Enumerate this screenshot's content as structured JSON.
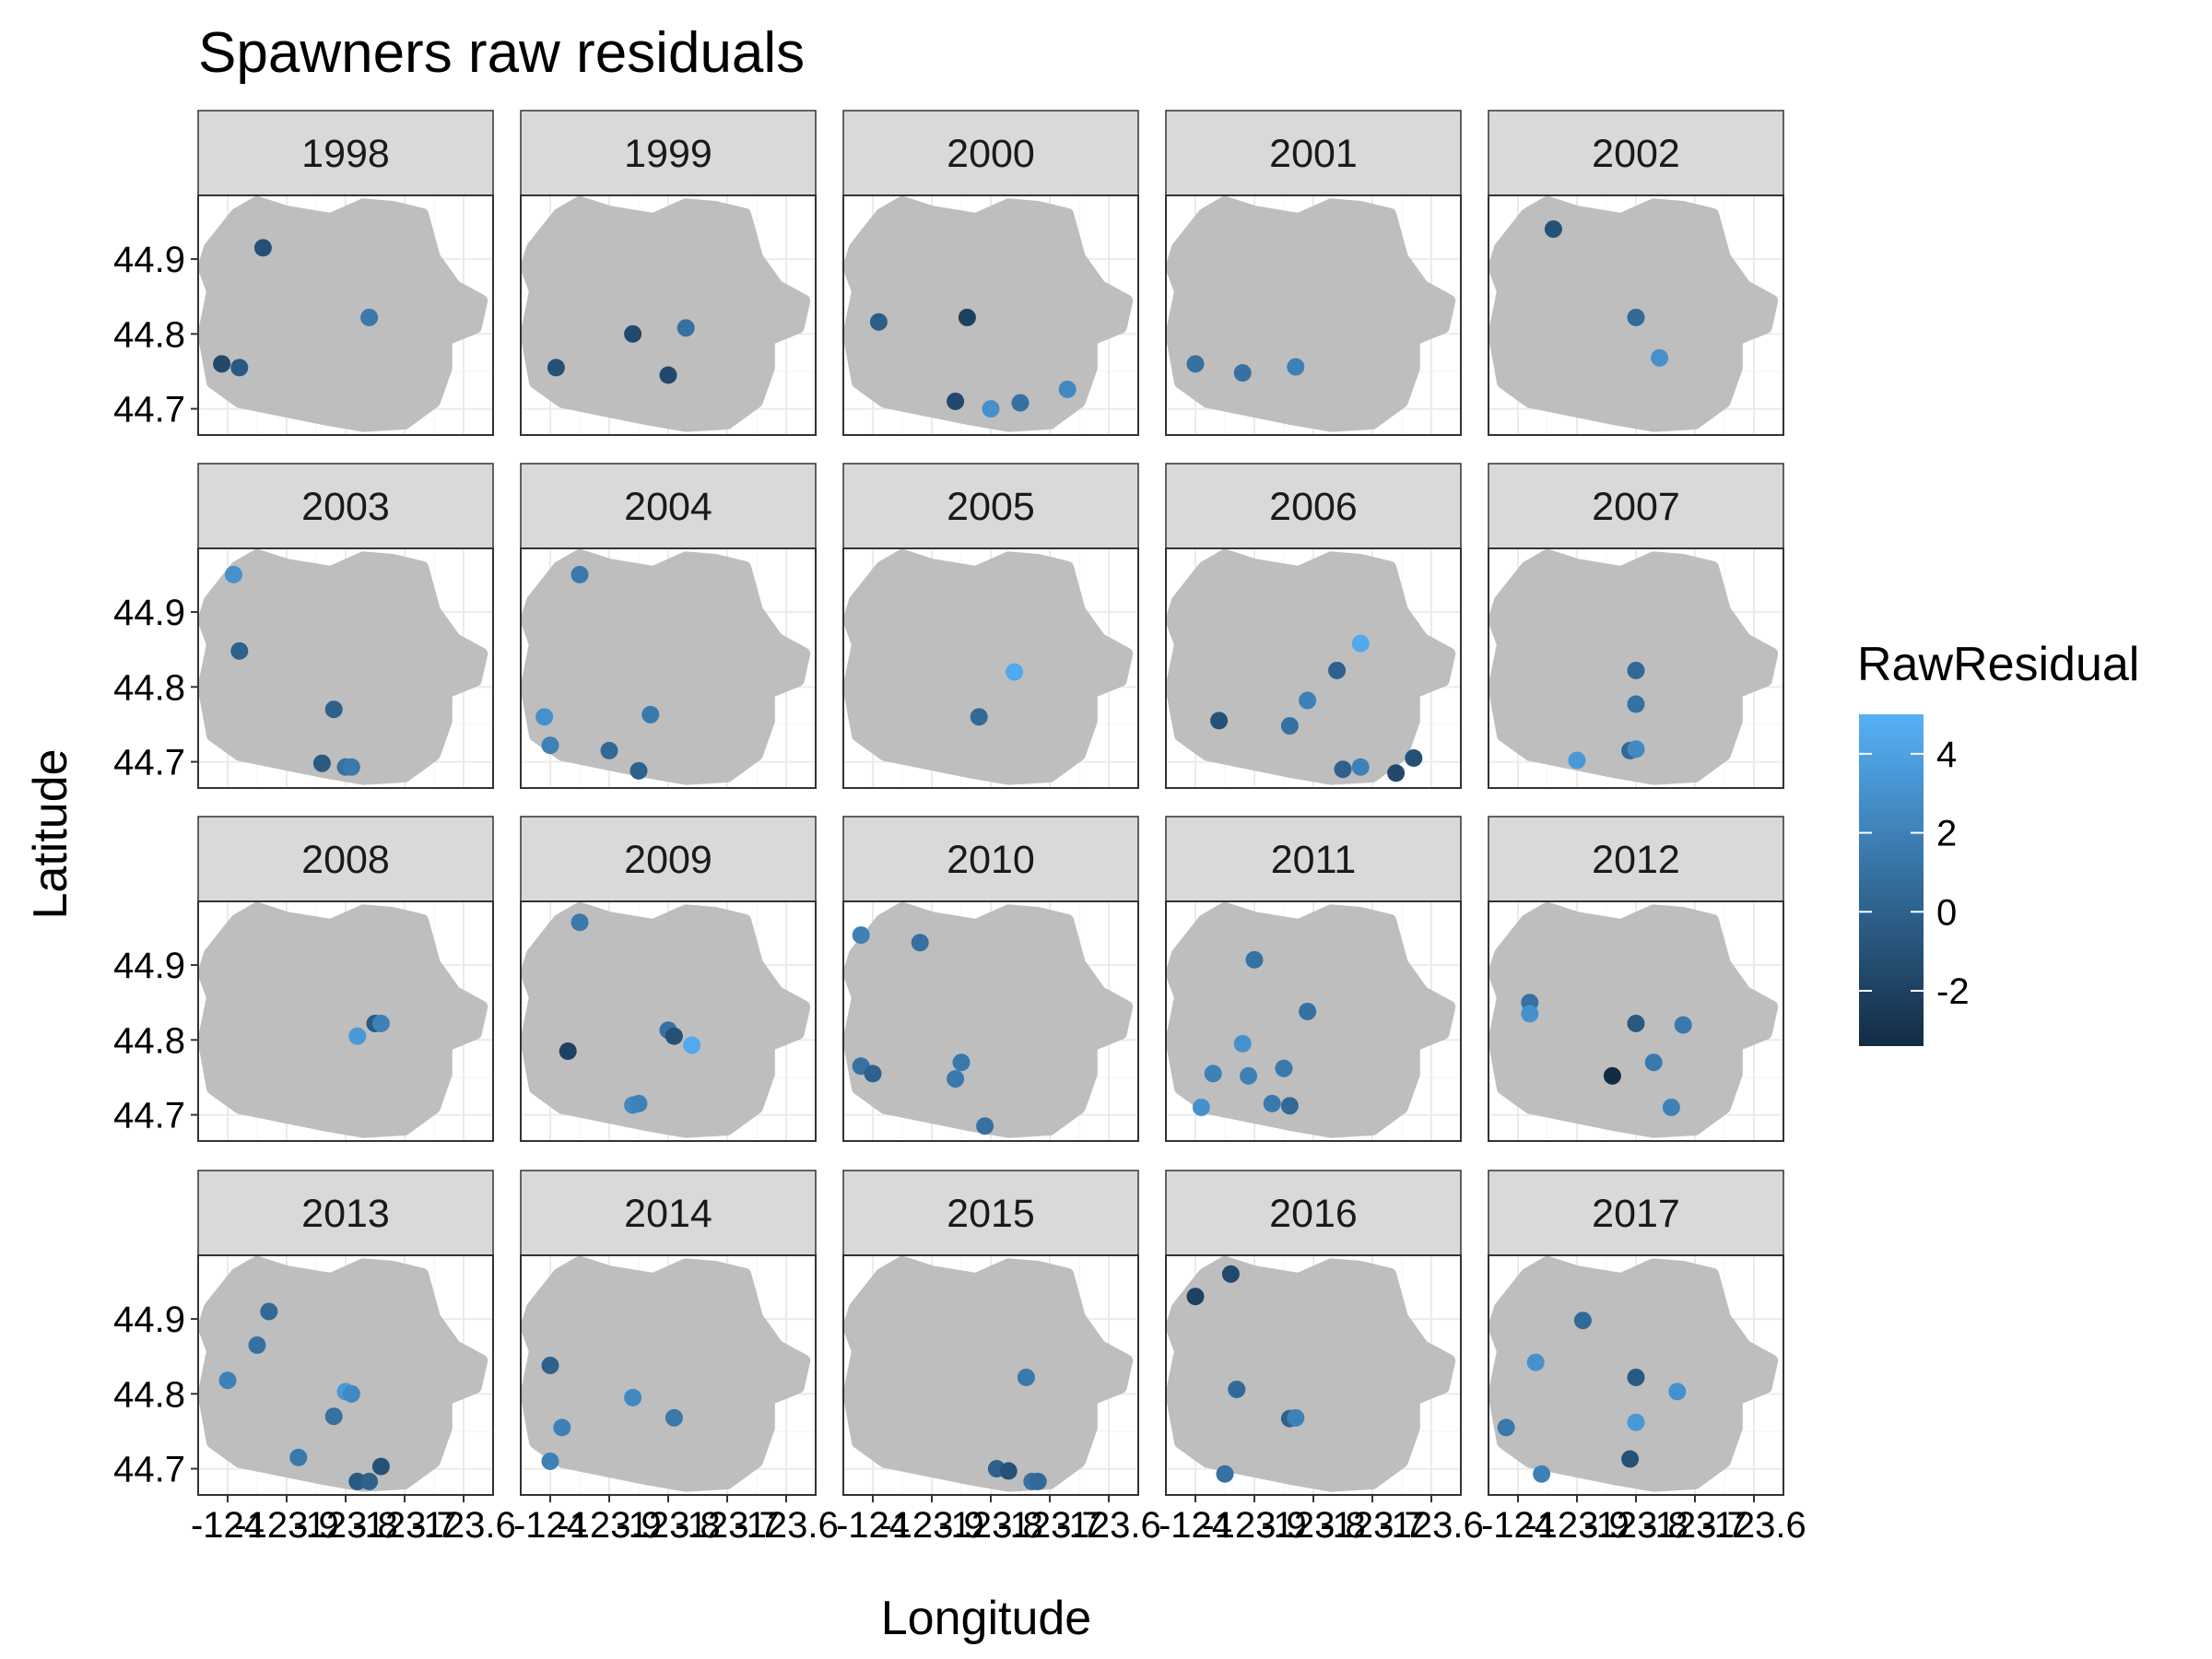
{
  "chart_data": {
    "type": "scatter",
    "facet": "year",
    "title": "Spawners raw residuals",
    "xlabel": "Longitude",
    "ylabel": "Latitude",
    "xlim": [
      -124.05,
      -123.55
    ],
    "ylim": [
      44.665,
      44.985
    ],
    "x_ticks": [
      -124,
      -123.9,
      -123.8,
      -123.7,
      -123.6
    ],
    "x_tick_labels": [
      "-124",
      "-123.9",
      "-123.8",
      "-123.7",
      "-123.6"
    ],
    "y_ticks": [
      44.7,
      44.8,
      44.9
    ],
    "y_tick_labels": [
      "44.7",
      "44.8",
      "44.9"
    ],
    "grid": true,
    "background_region_color": "#bebebe",
    "legend": {
      "title": "RawResidual",
      "position": "right",
      "ticks": [
        4,
        2,
        0,
        -2
      ],
      "tick_labels": [
        "4",
        "2",
        "0",
        "-2"
      ],
      "range": [
        -3.4,
        5.0
      ],
      "color_low": "#132b43",
      "color_high": "#56b1f7"
    },
    "panels": [
      {
        "year": "1998",
        "points": [
          {
            "x": -123.94,
            "y": 44.915,
            "r": -1.0
          },
          {
            "x": -123.76,
            "y": 44.822,
            "r": 1.5
          },
          {
            "x": -124.01,
            "y": 44.76,
            "r": -1.5
          },
          {
            "x": -123.98,
            "y": 44.755,
            "r": -0.5
          }
        ]
      },
      {
        "year": "1999",
        "points": [
          {
            "x": -123.86,
            "y": 44.8,
            "r": -1.5
          },
          {
            "x": -123.77,
            "y": 44.808,
            "r": 1.0
          },
          {
            "x": -123.99,
            "y": 44.755,
            "r": -1.0
          },
          {
            "x": -123.8,
            "y": 44.745,
            "r": -1.5
          }
        ]
      },
      {
        "year": "2000",
        "points": [
          {
            "x": -123.99,
            "y": 44.816,
            "r": -0.2
          },
          {
            "x": -123.84,
            "y": 44.822,
            "r": -2.0
          },
          {
            "x": -123.86,
            "y": 44.71,
            "r": -1.5
          },
          {
            "x": -123.8,
            "y": 44.7,
            "r": 3.0
          },
          {
            "x": -123.75,
            "y": 44.708,
            "r": 1.0
          },
          {
            "x": -123.67,
            "y": 44.726,
            "r": 2.5
          }
        ]
      },
      {
        "year": "2001",
        "points": [
          {
            "x": -124.0,
            "y": 44.76,
            "r": 1.0
          },
          {
            "x": -123.92,
            "y": 44.748,
            "r": 1.0
          },
          {
            "x": -123.83,
            "y": 44.756,
            "r": 2.0
          }
        ]
      },
      {
        "year": "2002",
        "points": [
          {
            "x": -123.94,
            "y": 44.94,
            "r": -1.0
          },
          {
            "x": -123.8,
            "y": 44.822,
            "r": 0.5
          },
          {
            "x": -123.76,
            "y": 44.768,
            "r": 3.0
          }
        ]
      },
      {
        "year": "2003",
        "points": [
          {
            "x": -123.99,
            "y": 44.95,
            "r": 3.0
          },
          {
            "x": -123.98,
            "y": 44.848,
            "r": 0.0
          },
          {
            "x": -123.82,
            "y": 44.77,
            "r": 0.0
          },
          {
            "x": -123.84,
            "y": 44.698,
            "r": -0.5
          },
          {
            "x": -123.8,
            "y": 44.693,
            "r": 1.0
          },
          {
            "x": -123.79,
            "y": 44.693,
            "r": 1.5
          }
        ]
      },
      {
        "year": "2004",
        "points": [
          {
            "x": -123.95,
            "y": 44.95,
            "r": 1.5
          },
          {
            "x": -124.01,
            "y": 44.76,
            "r": 3.0
          },
          {
            "x": -124.0,
            "y": 44.722,
            "r": 2.0
          },
          {
            "x": -123.9,
            "y": 44.715,
            "r": 0.5
          },
          {
            "x": -123.83,
            "y": 44.763,
            "r": 1.5
          },
          {
            "x": -123.85,
            "y": 44.688,
            "r": 0.0
          }
        ]
      },
      {
        "year": "2005",
        "points": [
          {
            "x": -123.76,
            "y": 44.82,
            "r": 4.5
          },
          {
            "x": -123.82,
            "y": 44.76,
            "r": 0.5
          }
        ]
      },
      {
        "year": "2006",
        "points": [
          {
            "x": -123.72,
            "y": 44.858,
            "r": 4.5
          },
          {
            "x": -123.76,
            "y": 44.822,
            "r": 0.0
          },
          {
            "x": -123.81,
            "y": 44.782,
            "r": 2.0
          },
          {
            "x": -123.84,
            "y": 44.748,
            "r": 1.0
          },
          {
            "x": -123.96,
            "y": 44.755,
            "r": -1.0
          },
          {
            "x": -123.75,
            "y": 44.69,
            "r": 0.0
          },
          {
            "x": -123.72,
            "y": 44.693,
            "r": 2.0
          },
          {
            "x": -123.66,
            "y": 44.685,
            "r": -1.5
          },
          {
            "x": -123.63,
            "y": 44.705,
            "r": -1.0
          }
        ]
      },
      {
        "year": "2007",
        "points": [
          {
            "x": -123.8,
            "y": 44.822,
            "r": 0.5
          },
          {
            "x": -123.8,
            "y": 44.777,
            "r": 1.0
          },
          {
            "x": -123.81,
            "y": 44.715,
            "r": 0.5
          },
          {
            "x": -123.8,
            "y": 44.717,
            "r": 2.5
          },
          {
            "x": -123.9,
            "y": 44.702,
            "r": 3.5
          }
        ]
      },
      {
        "year": "2008",
        "points": [
          {
            "x": -123.75,
            "y": 44.822,
            "r": -0.5
          },
          {
            "x": -123.74,
            "y": 44.822,
            "r": 2.0
          },
          {
            "x": -123.78,
            "y": 44.805,
            "r": 3.5
          }
        ]
      },
      {
        "year": "2009",
        "points": [
          {
            "x": -123.95,
            "y": 44.957,
            "r": 1.5
          },
          {
            "x": -123.97,
            "y": 44.785,
            "r": -2.0
          },
          {
            "x": -123.8,
            "y": 44.813,
            "r": 1.0
          },
          {
            "x": -123.79,
            "y": 44.805,
            "r": -1.0
          },
          {
            "x": -123.76,
            "y": 44.793,
            "r": 4.5
          },
          {
            "x": -123.86,
            "y": 44.713,
            "r": 2.5
          },
          {
            "x": -123.85,
            "y": 44.715,
            "r": 2.0
          }
        ]
      },
      {
        "year": "2010",
        "points": [
          {
            "x": -124.02,
            "y": 44.94,
            "r": 2.0
          },
          {
            "x": -123.92,
            "y": 44.93,
            "r": 1.0
          },
          {
            "x": -124.02,
            "y": 44.765,
            "r": 1.0
          },
          {
            "x": -124.0,
            "y": 44.755,
            "r": 0.0
          },
          {
            "x": -123.85,
            "y": 44.77,
            "r": 1.5
          },
          {
            "x": -123.86,
            "y": 44.748,
            "r": 1.5
          },
          {
            "x": -123.81,
            "y": 44.685,
            "r": 1.0
          }
        ]
      },
      {
        "year": "2011",
        "points": [
          {
            "x": -123.9,
            "y": 44.907,
            "r": 1.0
          },
          {
            "x": -123.81,
            "y": 44.838,
            "r": 1.0
          },
          {
            "x": -123.92,
            "y": 44.795,
            "r": 3.0
          },
          {
            "x": -123.97,
            "y": 44.755,
            "r": 2.0
          },
          {
            "x": -123.91,
            "y": 44.752,
            "r": 2.0
          },
          {
            "x": -123.85,
            "y": 44.762,
            "r": 1.5
          },
          {
            "x": -123.87,
            "y": 44.715,
            "r": 1.5
          },
          {
            "x": -123.84,
            "y": 44.712,
            "r": 0.5
          },
          {
            "x": -123.99,
            "y": 44.71,
            "r": 3.0
          }
        ]
      },
      {
        "year": "2012",
        "points": [
          {
            "x": -123.98,
            "y": 44.85,
            "r": 1.0
          },
          {
            "x": -123.98,
            "y": 44.835,
            "r": 3.0
          },
          {
            "x": -123.8,
            "y": 44.822,
            "r": -0.5
          },
          {
            "x": -123.72,
            "y": 44.82,
            "r": 1.5
          },
          {
            "x": -123.77,
            "y": 44.77,
            "r": 1.5
          },
          {
            "x": -123.74,
            "y": 44.71,
            "r": 2.0
          },
          {
            "x": -123.84,
            "y": 44.752,
            "r": -3.4
          }
        ]
      },
      {
        "year": "2013",
        "points": [
          {
            "x": -123.93,
            "y": 44.91,
            "r": 0.5
          },
          {
            "x": -123.95,
            "y": 44.865,
            "r": 1.0
          },
          {
            "x": -124.0,
            "y": 44.818,
            "r": 2.0
          },
          {
            "x": -123.8,
            "y": 44.803,
            "r": 3.5
          },
          {
            "x": -123.79,
            "y": 44.8,
            "r": 2.5
          },
          {
            "x": -123.82,
            "y": 44.77,
            "r": 1.0
          },
          {
            "x": -123.88,
            "y": 44.715,
            "r": 1.5
          },
          {
            "x": -123.78,
            "y": 44.683,
            "r": -0.5
          },
          {
            "x": -123.76,
            "y": 44.683,
            "r": 0.0
          },
          {
            "x": -123.74,
            "y": 44.703,
            "r": -1.0
          }
        ]
      },
      {
        "year": "2014",
        "points": [
          {
            "x": -124.0,
            "y": 44.838,
            "r": 0.0
          },
          {
            "x": -123.86,
            "y": 44.795,
            "r": 2.5
          },
          {
            "x": -123.79,
            "y": 44.768,
            "r": 1.5
          },
          {
            "x": -123.98,
            "y": 44.755,
            "r": 2.0
          },
          {
            "x": -124.0,
            "y": 44.71,
            "r": 2.0
          }
        ]
      },
      {
        "year": "2015",
        "points": [
          {
            "x": -123.74,
            "y": 44.822,
            "r": 1.5
          },
          {
            "x": -123.79,
            "y": 44.7,
            "r": 0.0
          },
          {
            "x": -123.77,
            "y": 44.697,
            "r": -1.0
          },
          {
            "x": -123.73,
            "y": 44.683,
            "r": 1.0
          },
          {
            "x": -123.72,
            "y": 44.683,
            "r": 0.5
          }
        ]
      },
      {
        "year": "2016",
        "points": [
          {
            "x": -124.0,
            "y": 44.93,
            "r": -2.0
          },
          {
            "x": -123.94,
            "y": 44.96,
            "r": -1.5
          },
          {
            "x": -123.93,
            "y": 44.806,
            "r": 0.5
          },
          {
            "x": -123.84,
            "y": 44.767,
            "r": 0.0
          },
          {
            "x": -123.83,
            "y": 44.768,
            "r": 2.0
          },
          {
            "x": -123.95,
            "y": 44.693,
            "r": 1.0
          }
        ]
      },
      {
        "year": "2017",
        "points": [
          {
            "x": -123.89,
            "y": 44.898,
            "r": 0.5
          },
          {
            "x": -123.97,
            "y": 44.842,
            "r": 3.0
          },
          {
            "x": -123.8,
            "y": 44.822,
            "r": -0.5
          },
          {
            "x": -123.73,
            "y": 44.803,
            "r": 3.0
          },
          {
            "x": -124.02,
            "y": 44.755,
            "r": 1.5
          },
          {
            "x": -123.8,
            "y": 44.762,
            "r": 3.5
          },
          {
            "x": -123.81,
            "y": 44.713,
            "r": -1.0
          },
          {
            "x": -123.96,
            "y": 44.693,
            "r": 2.0
          }
        ]
      }
    ]
  }
}
